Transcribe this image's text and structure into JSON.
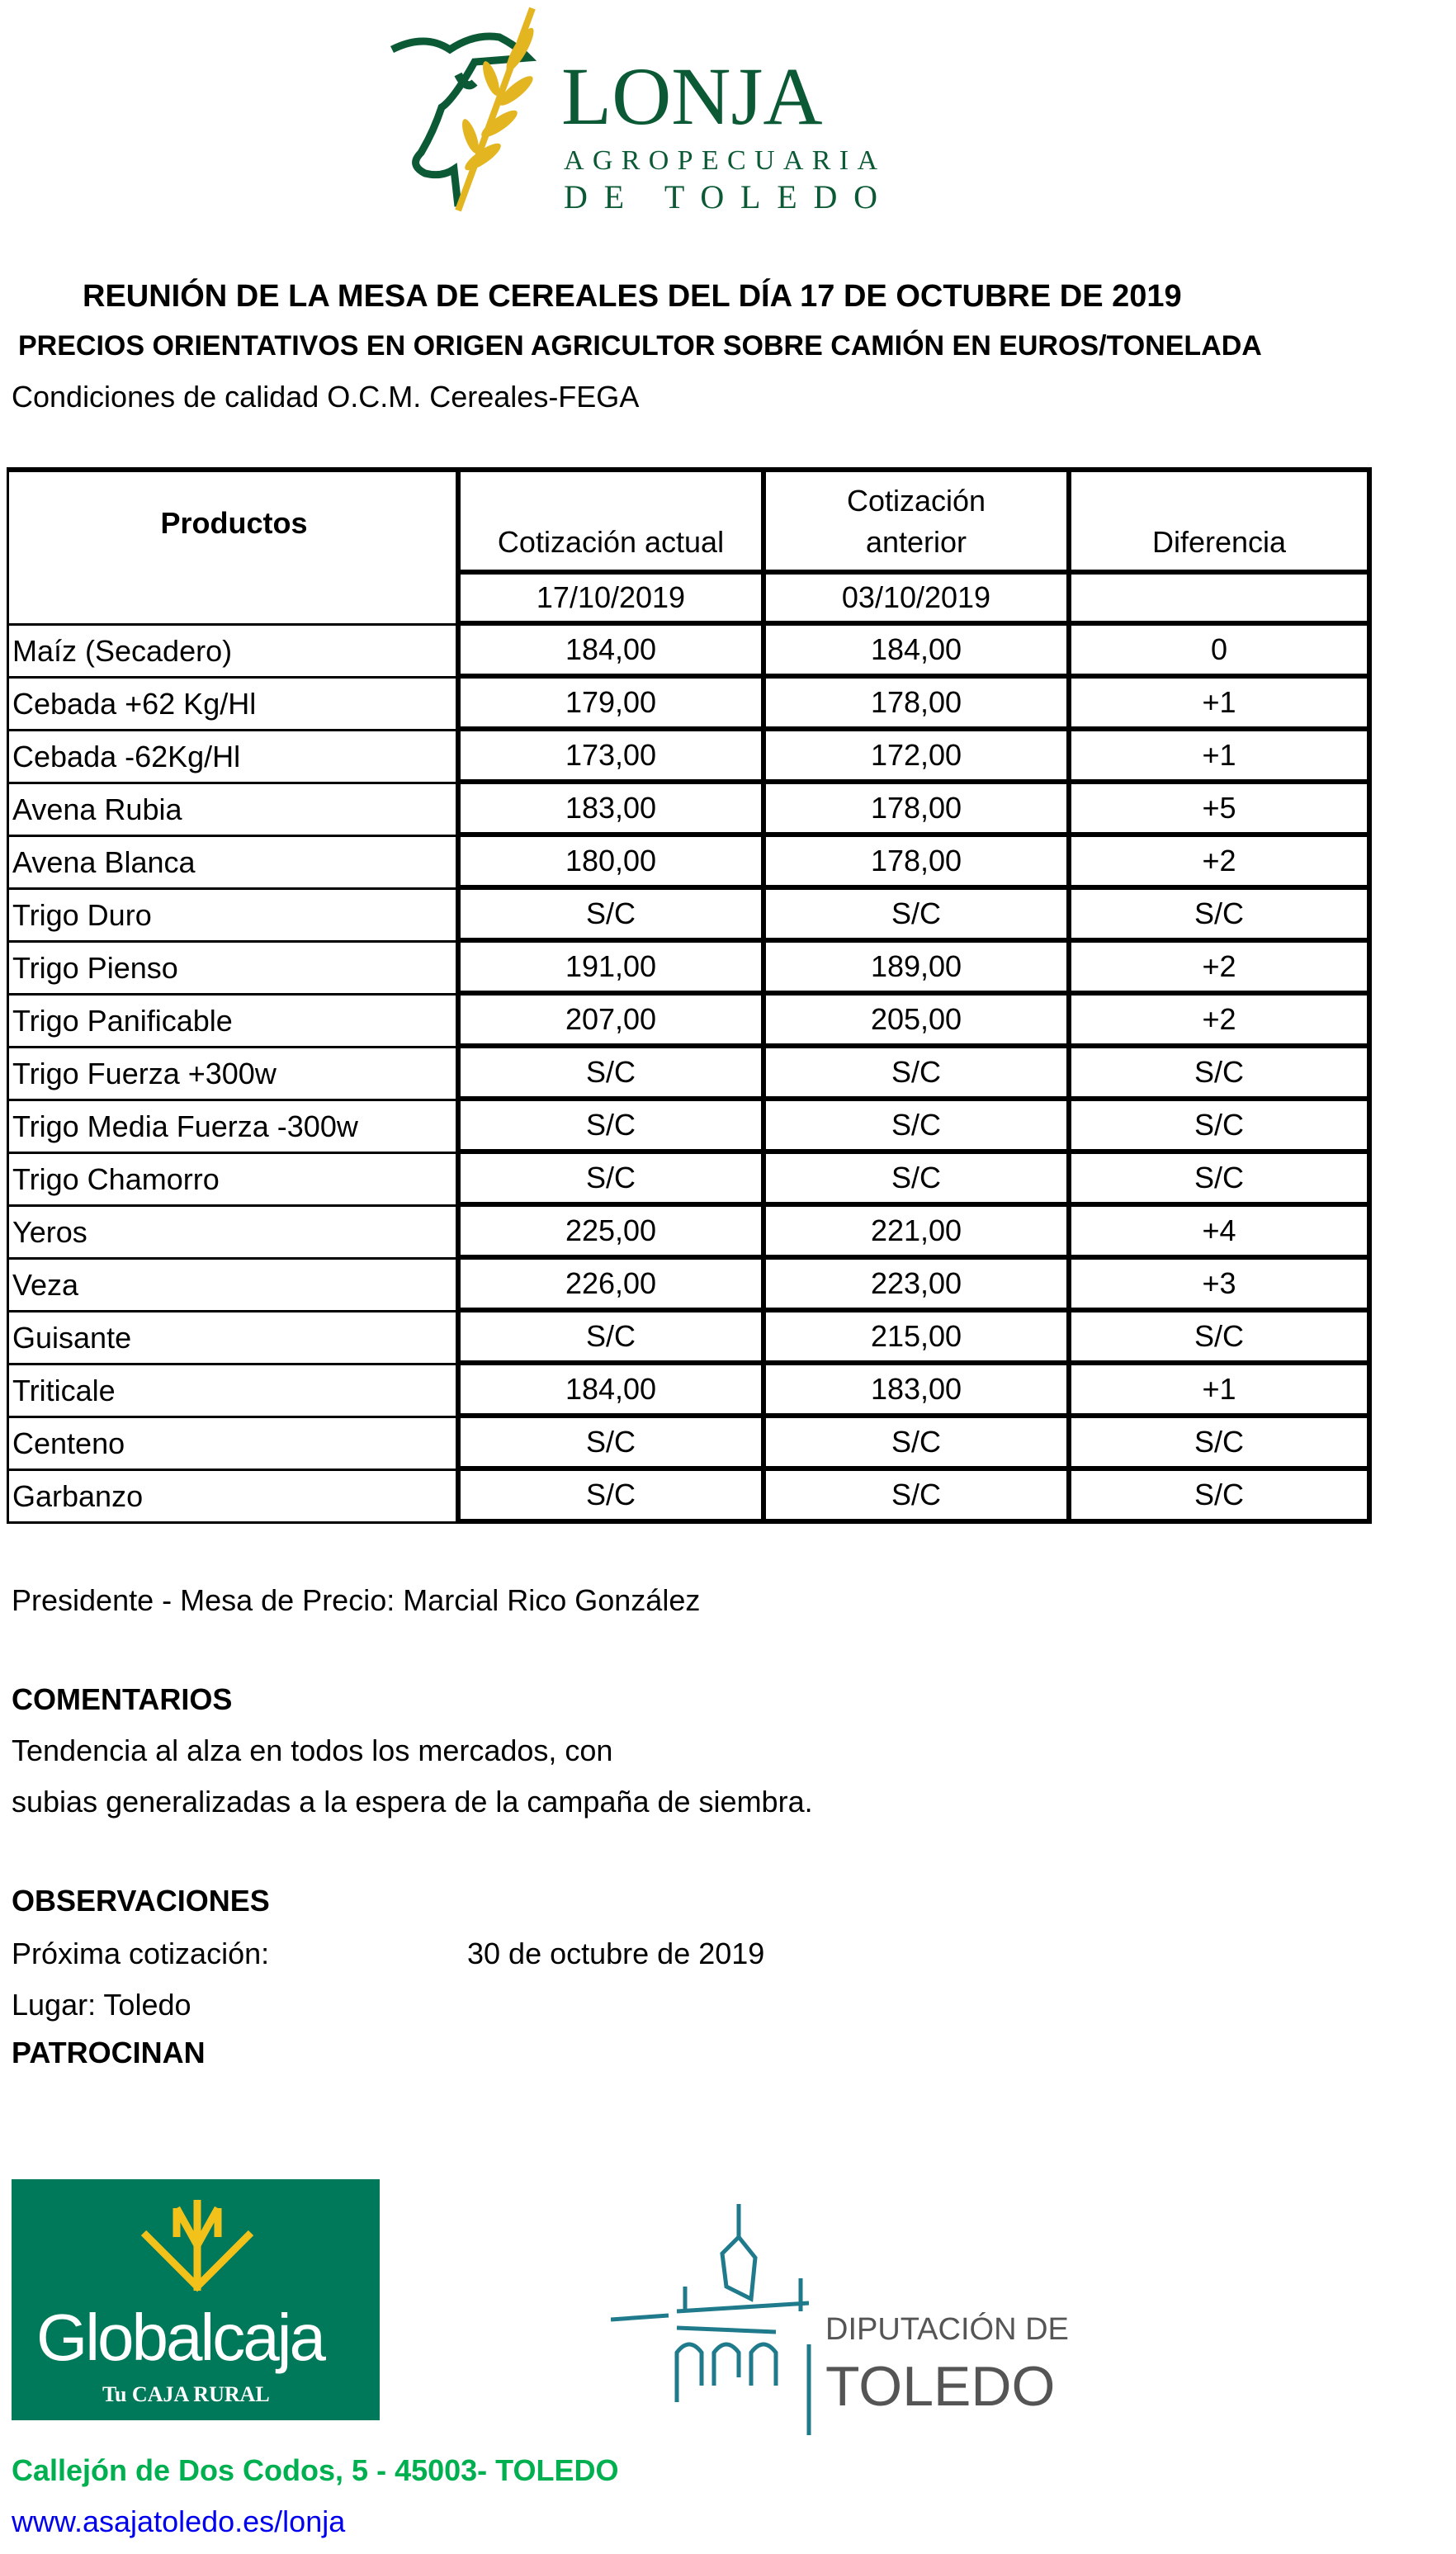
{
  "logo": {
    "line1": "LONJA",
    "line2": "AGROPECUARIA",
    "line3": "DE TOLEDO"
  },
  "title": "REUNIÓN DE LA MESA DE CEREALES DEL DÍA 17 DE OCTUBRE DE 2019",
  "subtitle": "PRECIOS ORIENTATIVOS EN ORIGEN AGRICULTOR SOBRE CAMIÓN EN EUROS/TONELADA",
  "conditions": "Condiciones de calidad O.C.M. Cereales-FEGA",
  "table": {
    "headers": {
      "product": "Productos",
      "current": "Cotización actual",
      "previous": "Cotización anterior",
      "diff": "Diferencia"
    },
    "dates": {
      "current": "17/10/2019",
      "previous": "03/10/2019"
    },
    "rows": [
      [
        "Maíz (Secadero)",
        "184,00",
        "184,00",
        "0"
      ],
      [
        "Cebada +62 Kg/Hl",
        "179,00",
        "178,00",
        "+1"
      ],
      [
        "Cebada -62Kg/Hl",
        "173,00",
        "172,00",
        "+1"
      ],
      [
        "Avena Rubia",
        "183,00",
        "178,00",
        "+5"
      ],
      [
        "Avena Blanca",
        "180,00",
        "178,00",
        "+2"
      ],
      [
        "Trigo Duro",
        "S/C",
        "S/C",
        "S/C"
      ],
      [
        "Trigo Pienso",
        "191,00",
        "189,00",
        "+2"
      ],
      [
        "Trigo Panificable",
        "207,00",
        "205,00",
        "+2"
      ],
      [
        "Trigo Fuerza +300w",
        "S/C",
        "S/C",
        "S/C"
      ],
      [
        "Trigo Media Fuerza -300w",
        "S/C",
        "S/C",
        "S/C"
      ],
      [
        "Trigo Chamorro",
        "S/C",
        "S/C",
        "S/C"
      ],
      [
        "Yeros",
        "225,00",
        "221,00",
        "+4"
      ],
      [
        "Veza",
        "226,00",
        "223,00",
        "+3"
      ],
      [
        "Guisante",
        "S/C",
        "215,00",
        "S/C"
      ],
      [
        "Triticale",
        "184,00",
        "183,00",
        "+1"
      ],
      [
        "Centeno",
        "S/C",
        "S/C",
        "S/C"
      ],
      [
        "Garbanzo",
        "S/C",
        "S/C",
        "S/C"
      ]
    ]
  },
  "president": "Presidente - Mesa de Precio: Marcial Rico González",
  "comments": {
    "heading": "COMENTARIOS",
    "line1": "Tendencia al alza en todos los mercados, con",
    "line2": "subias generalizadas a la espera de la campaña de siembra."
  },
  "observations": {
    "heading": "OBSERVACIONES",
    "next_label": "Próxima cotización:",
    "next_value": "30 de octubre de 2019",
    "place": "Lugar: Toledo"
  },
  "sponsors": {
    "heading": "PATROCINAN",
    "globalcaja": "Globalcaja",
    "globalcaja_tag": "Tu CAJA RURAL",
    "diputacion_line1": "DIPUTACIÓN DE",
    "diputacion_line2": "TOLEDO"
  },
  "footer": {
    "address": "Callejón de Dos Codos, 5 - 45003- TOLEDO",
    "url": "www.asajatoledo.es/lonja"
  },
  "colors": {
    "logo_green": "#0b5a35",
    "wheat_gold": "#e3b520",
    "globalcaja_green": "#00785a",
    "address_green": "#00b050",
    "diputacion_teal": "#1f7a8c"
  }
}
